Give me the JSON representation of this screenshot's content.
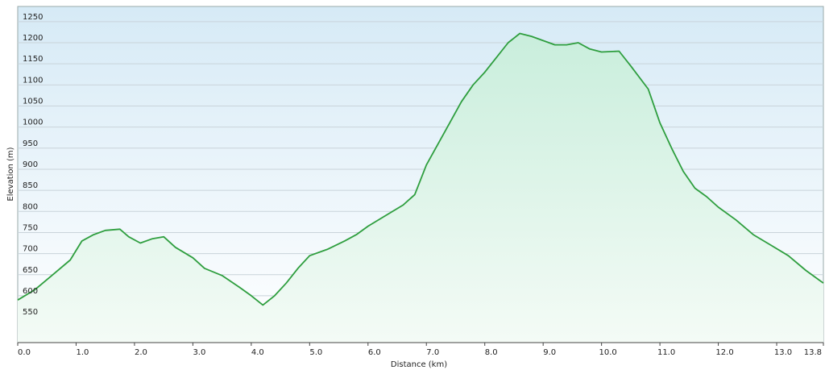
{
  "chart_data": {
    "type": "area",
    "x_label": "Distance (km)",
    "y_label": "Elevation (m)",
    "x": [
      0.0,
      0.3,
      0.6,
      0.9,
      1.1,
      1.3,
      1.5,
      1.75,
      1.9,
      2.1,
      2.3,
      2.5,
      2.7,
      3.0,
      3.2,
      3.5,
      3.8,
      4.0,
      4.2,
      4.4,
      4.6,
      4.8,
      5.0,
      5.3,
      5.6,
      5.8,
      6.0,
      6.3,
      6.6,
      6.8,
      7.0,
      7.2,
      7.4,
      7.6,
      7.8,
      8.0,
      8.2,
      8.4,
      8.6,
      8.8,
      9.0,
      9.2,
      9.4,
      9.6,
      9.8,
      10.0,
      10.3,
      10.5,
      10.8,
      11.0,
      11.2,
      11.4,
      11.6,
      11.8,
      12.0,
      12.3,
      12.6,
      12.9,
      13.2,
      13.5,
      13.7,
      13.8
    ],
    "values": [
      590,
      615,
      650,
      685,
      730,
      745,
      755,
      758,
      740,
      725,
      735,
      740,
      715,
      690,
      665,
      648,
      620,
      600,
      578,
      600,
      630,
      665,
      695,
      710,
      730,
      745,
      765,
      790,
      815,
      840,
      910,
      960,
      1010,
      1060,
      1100,
      1130,
      1165,
      1200,
      1222,
      1215,
      1205,
      1195,
      1195,
      1200,
      1185,
      1178,
      1180,
      1145,
      1090,
      1010,
      950,
      895,
      855,
      835,
      810,
      780,
      745,
      720,
      695,
      660,
      640,
      630
    ],
    "color": "#2e9e3e",
    "xlim": [
      0,
      13.8
    ],
    "xticks": [
      {
        "value": 0,
        "label": "0.0"
      },
      {
        "value": 1,
        "label": "1.0"
      },
      {
        "value": 2,
        "label": "2.0"
      },
      {
        "value": 3,
        "label": "3.0"
      },
      {
        "value": 4,
        "label": "4.0"
      },
      {
        "value": 5,
        "label": "5.0"
      },
      {
        "value": 6,
        "label": "6.0"
      },
      {
        "value": 7,
        "label": "7.0"
      },
      {
        "value": 8,
        "label": "8.0"
      },
      {
        "value": 9,
        "label": "9.0"
      },
      {
        "value": 10,
        "label": "10.0"
      },
      {
        "value": 11,
        "label": "11.0"
      },
      {
        "value": 12,
        "label": "12.0"
      },
      {
        "value": 13,
        "label": "13.0"
      },
      {
        "value": 13.8,
        "label": "13.8"
      }
    ],
    "ylim": [
      489,
      1286
    ],
    "yticks": [
      550,
      600,
      650,
      700,
      750,
      800,
      850,
      900,
      950,
      1000,
      1050,
      1100,
      1150,
      1200,
      1250
    ],
    "grid": true
  }
}
